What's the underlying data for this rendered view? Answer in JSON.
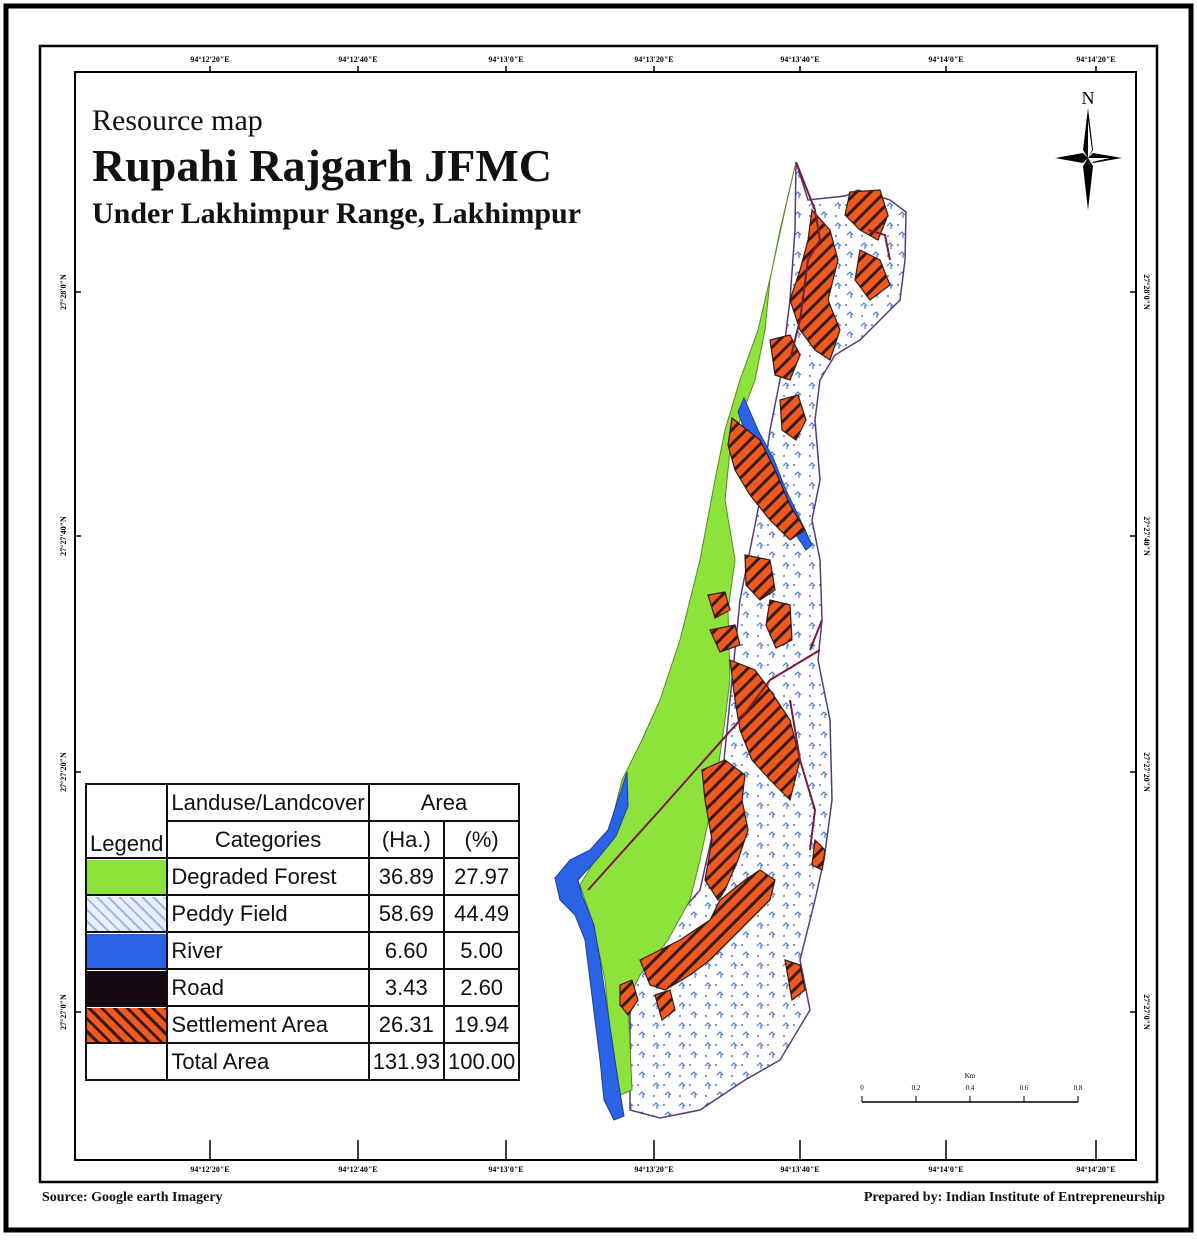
{
  "title": {
    "subtitle": "Resource map",
    "main": "Rupahi Rajgarh JFMC",
    "range": "Under Lakhimpur Range, Lakhimpur"
  },
  "graticule": {
    "lon_top": [
      "94°12'20\"E",
      "94°12'40\"E",
      "94°13'0\"E",
      "94°13'20\"E",
      "94°13'40\"E",
      "94°14'0\"E",
      "94°14'20\"E"
    ],
    "lon_bottom": [
      "94°12'20\"E",
      "94°12'40\"E",
      "94°13'0\"E",
      "94°13'20\"E",
      "94°13'40\"E",
      "94°14'0\"E",
      "94°14'20\"E"
    ],
    "lat_left": [
      "27°28'0\"N",
      "27°27'40\"N",
      "27°27'20\"N",
      "27°27'0\"N"
    ],
    "lat_right": [
      "27°28'0\"N",
      "27°27'40\"N",
      "27°27'20\"N",
      "27°27'0\"N"
    ]
  },
  "north_arrow": {
    "label": "N"
  },
  "scale_bar": {
    "unit": "Km",
    "ticks": [
      "0",
      "0.2",
      "0.4",
      "0.6",
      "0.8"
    ]
  },
  "legend": {
    "col_legend": "Legend",
    "col_categories_1": "Landuse/Landcover",
    "col_categories_2": "Categories",
    "col_area": "Area",
    "col_ha": "(Ha.)",
    "col_pct": "(%)",
    "rows": [
      {
        "name": "Degraded Forest",
        "ha": "36.89",
        "pct": "27.97",
        "color": "#8ee23c"
      },
      {
        "name": "Peddy Field",
        "ha": "58.69",
        "pct": "44.49",
        "color": "#e6ecf8"
      },
      {
        "name": "River",
        "ha": "6.60",
        "pct": "5.00",
        "color": "#2b63e6"
      },
      {
        "name": "Road",
        "ha": "3.43",
        "pct": "2.60",
        "color": "#140a14"
      },
      {
        "name": "Settlement Area",
        "ha": "26.31",
        "pct": "19.94",
        "color": "#f05a1e"
      }
    ],
    "total": {
      "name": "Total Area",
      "ha": "131.93",
      "pct": "100.00"
    }
  },
  "footer": {
    "source": "Source: Google earth Imagery",
    "prepared": "Prepared by: Indian Institute of Entrepreneurship"
  }
}
